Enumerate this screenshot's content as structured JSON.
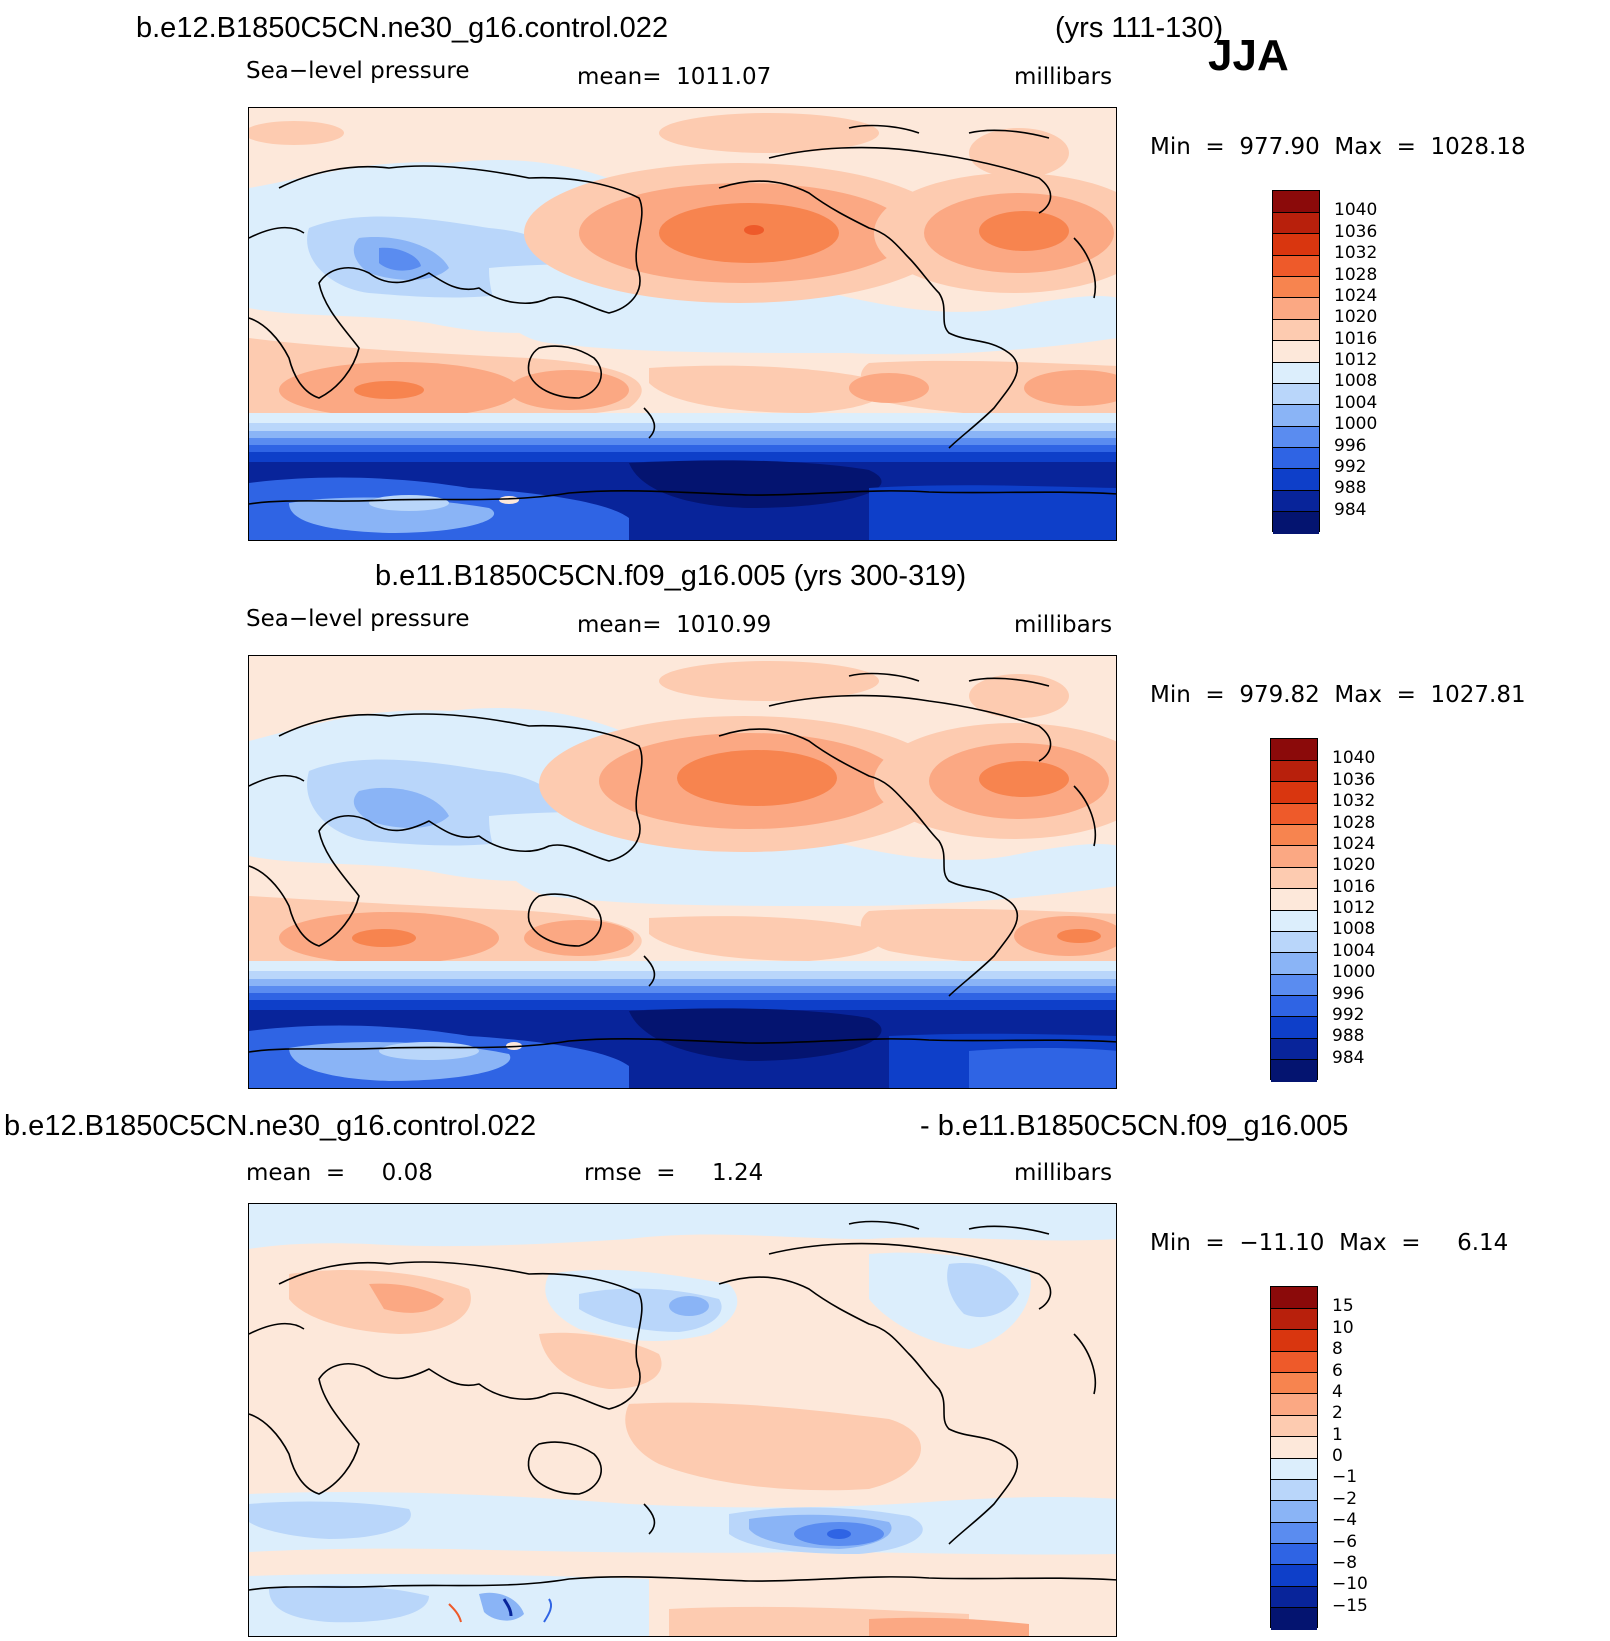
{
  "season": "JJA",
  "panels": [
    {
      "title_left": "b.e12.B1850C5CN.ne30_g16.control.022",
      "title_right": "(yrs 111-130)",
      "variable": "Sea−level pressure",
      "mean_text": "mean=  1011.07",
      "units": "millibars",
      "minmax": "Min  =  977.90  Max  =  1028.18",
      "field": "slp"
    },
    {
      "title_center": "b.e11.B1850C5CN.f09_g16.005 (yrs 300-319)",
      "variable": "Sea−level pressure",
      "mean_text": "mean=  1010.99",
      "units": "millibars",
      "minmax": "Min  =  979.82  Max  =  1027.81",
      "field": "slp"
    },
    {
      "title_left": "b.e12.B1850C5CN.ne30_g16.control.022",
      "title_right": "- b.e11.B1850C5CN.f09_g16.005",
      "mean_text": "mean  =     0.08",
      "rmse_text": "rmse  =     1.24",
      "units": "millibars",
      "minmax": "Min  =  −11.10  Max  =     6.14",
      "field": "diff"
    }
  ],
  "colorbars": {
    "slp_labels": [
      "1040",
      "1036",
      "1032",
      "1028",
      "1024",
      "1020",
      "1016",
      "1012",
      "1008",
      "1004",
      "1000",
      "996",
      "992",
      "988",
      "984"
    ],
    "diff_labels": [
      "15",
      "10",
      "8",
      "6",
      "4",
      "2",
      "1",
      "0",
      "−1",
      "−2",
      "−4",
      "−6",
      "−8",
      "−10",
      "−15"
    ],
    "colors": [
      "#8b0a0a",
      "#b8200c",
      "#d9360f",
      "#ee5a2a",
      "#f7844f",
      "#fba883",
      "#fdcbb0",
      "#fde8da",
      "#dceefc",
      "#b9d6fa",
      "#8ab4f6",
      "#5a8cf0",
      "#2f64e4",
      "#0e3fc9",
      "#08249a",
      "#041470"
    ]
  }
}
